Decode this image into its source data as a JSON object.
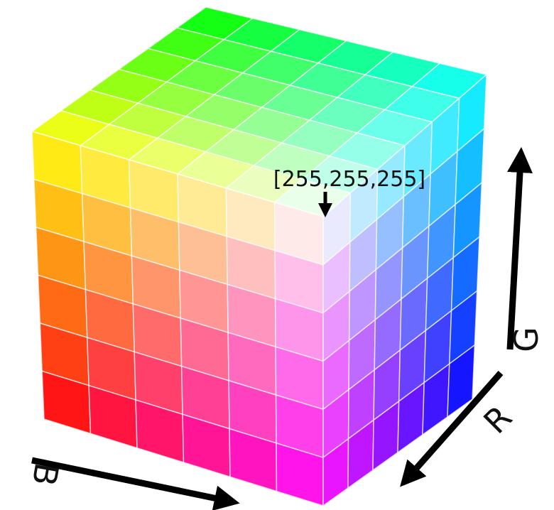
{
  "annotation": {
    "label": "[255,255,255]"
  },
  "axes": {
    "b": "B",
    "r": "R",
    "g": "G"
  }
}
